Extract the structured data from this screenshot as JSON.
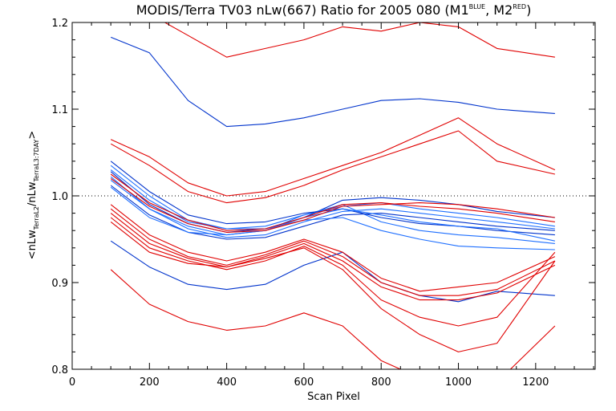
{
  "chart_data": {
    "type": "line",
    "title": {
      "main": "MODIS/Terra TV03 nLw(667) Ratio for 2005 080 (M1",
      "sup1": "BLUE",
      "middle": ", M2",
      "sup2": "RED",
      "end": ")"
    },
    "xlabel": "Scan Pixel",
    "ylabel": {
      "open": "<nLw",
      "sub1": "TerraL2",
      "mid": "/nLw",
      "sub2": "TerraL3:7DAY",
      "close": ">"
    },
    "xlim": [
      0,
      1354
    ],
    "ylim": [
      0.8,
      1.2
    ],
    "x_ticks": [
      0,
      200,
      400,
      600,
      800,
      1000,
      1200
    ],
    "x_tick_labels": [
      "0",
      "200",
      "400",
      "600",
      "800",
      "1000",
      "1200"
    ],
    "y_ticks": [
      0.8,
      0.9,
      1.0,
      1.1,
      1.2
    ],
    "y_tick_labels": [
      "0.8",
      "0.9",
      "1.0",
      "1.1",
      "1.2"
    ],
    "reference_line": {
      "y": 1.0,
      "style": "dotted"
    },
    "grid": false,
    "legend": "none",
    "colors": {
      "M1": "#0033cc",
      "M1_light": "#1e6fff",
      "M2": "#e00000"
    },
    "x": [
      100,
      200,
      300,
      400,
      500,
      600,
      700,
      800,
      900,
      1000,
      1100,
      1250
    ],
    "series": [
      {
        "group": "M1",
        "values": [
          1.183,
          1.165,
          1.11,
          1.08,
          1.083,
          1.09,
          1.1,
          1.11,
          1.112,
          1.108,
          1.1,
          1.095
        ]
      },
      {
        "group": "M1",
        "values": [
          1.035,
          1.0,
          0.972,
          0.962,
          0.965,
          0.978,
          0.988,
          0.992,
          0.985,
          0.98,
          0.975,
          0.965
        ]
      },
      {
        "group": "M1",
        "values": [
          1.028,
          0.99,
          0.968,
          0.958,
          0.962,
          0.975,
          0.995,
          0.998,
          0.995,
          0.99,
          0.982,
          0.975
        ]
      },
      {
        "group": "M1",
        "values": [
          1.022,
          0.985,
          0.965,
          0.955,
          0.96,
          0.978,
          0.99,
          0.97,
          0.96,
          0.955,
          0.952,
          0.945
        ]
      },
      {
        "group": "M1",
        "values": [
          1.04,
          1.005,
          0.978,
          0.968,
          0.97,
          0.98,
          0.985,
          0.975,
          0.968,
          0.965,
          0.96,
          0.955
        ]
      },
      {
        "group": "M1",
        "values": [
          1.018,
          0.985,
          0.962,
          0.952,
          0.955,
          0.97,
          0.982,
          0.985,
          0.98,
          0.975,
          0.97,
          0.962
        ]
      },
      {
        "group": "M1",
        "values": [
          1.012,
          0.978,
          0.958,
          0.95,
          0.952,
          0.965,
          0.978,
          0.98,
          0.975,
          0.97,
          0.965,
          0.96
        ]
      },
      {
        "group": "M1",
        "values": [
          1.03,
          0.995,
          0.97,
          0.962,
          0.962,
          0.972,
          0.975,
          0.96,
          0.95,
          0.942,
          0.94,
          0.938
        ]
      },
      {
        "group": "M1",
        "values": [
          0.948,
          0.918,
          0.898,
          0.892,
          0.898,
          0.92,
          0.935,
          0.9,
          0.885,
          0.878,
          0.89,
          0.885
        ]
      },
      {
        "group": "M1",
        "values": [
          1.01,
          0.975,
          0.958,
          0.955,
          0.96,
          0.975,
          0.985,
          0.978,
          0.97,
          0.965,
          0.962,
          0.948
        ]
      },
      {
        "group": "M2",
        "values": [
          1.24,
          1.21,
          1.185,
          1.16,
          1.17,
          1.18,
          1.195,
          1.19,
          1.2,
          1.195,
          1.17,
          1.16
        ]
      },
      {
        "group": "M2",
        "values": [
          1.065,
          1.045,
          1.015,
          1.0,
          1.005,
          1.02,
          1.035,
          1.05,
          1.07,
          1.09,
          1.06,
          1.03
        ]
      },
      {
        "group": "M2",
        "values": [
          1.06,
          1.035,
          1.005,
          0.992,
          0.998,
          1.012,
          1.03,
          1.045,
          1.06,
          1.075,
          1.04,
          1.025
        ]
      },
      {
        "group": "M2",
        "values": [
          1.025,
          0.992,
          0.972,
          0.96,
          0.962,
          0.975,
          0.99,
          0.992,
          0.988,
          0.985,
          0.98,
          0.97
        ]
      },
      {
        "group": "M2",
        "values": [
          1.02,
          0.988,
          0.968,
          0.958,
          0.96,
          0.972,
          0.988,
          0.99,
          0.992,
          0.99,
          0.985,
          0.975
        ]
      },
      {
        "group": "M2",
        "values": [
          0.99,
          0.955,
          0.935,
          0.925,
          0.935,
          0.95,
          0.935,
          0.905,
          0.89,
          0.895,
          0.9,
          0.93
        ]
      },
      {
        "group": "M2",
        "values": [
          0.985,
          0.95,
          0.93,
          0.92,
          0.932,
          0.948,
          0.93,
          0.9,
          0.885,
          0.885,
          0.892,
          0.925
        ]
      },
      {
        "group": "M2",
        "values": [
          0.98,
          0.945,
          0.928,
          0.918,
          0.93,
          0.945,
          0.925,
          0.895,
          0.88,
          0.88,
          0.888,
          0.92
        ]
      },
      {
        "group": "M2",
        "values": [
          0.975,
          0.94,
          0.925,
          0.915,
          0.925,
          0.942,
          0.92,
          0.88,
          0.86,
          0.85,
          0.86,
          0.935
        ]
      },
      {
        "group": "M2",
        "values": [
          0.97,
          0.935,
          0.922,
          0.918,
          0.928,
          0.94,
          0.915,
          0.87,
          0.84,
          0.82,
          0.83,
          0.925
        ]
      },
      {
        "group": "M2",
        "values": [
          0.915,
          0.875,
          0.855,
          0.845,
          0.85,
          0.865,
          0.85,
          0.81,
          0.79,
          0.78,
          0.785,
          0.85
        ]
      }
    ]
  }
}
